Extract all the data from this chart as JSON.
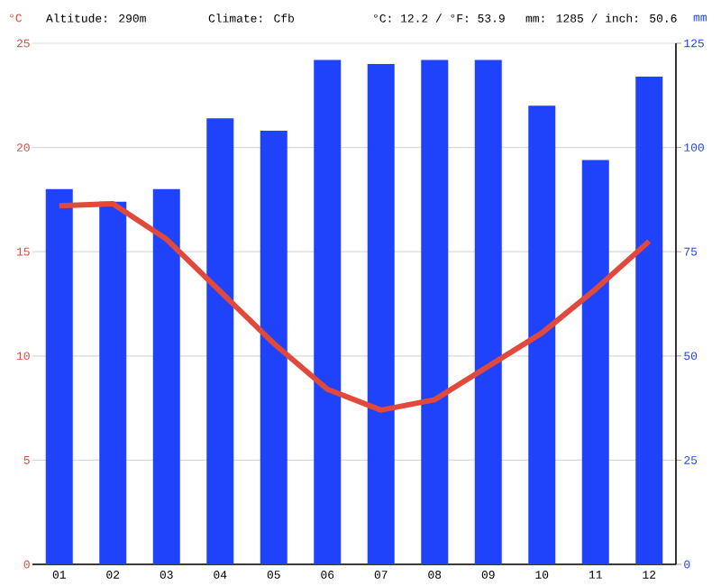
{
  "chart_data": {
    "type": "bar",
    "ylabel": "°C",
    "y2label": "mm",
    "annotations": [
      "Altitude: 290m",
      "Climate: Cfb",
      "°C: 12.2 / °F: 53.9",
      "mm: 1285 / inch: 50.6"
    ],
    "categories": [
      "01",
      "02",
      "03",
      "04",
      "05",
      "06",
      "07",
      "08",
      "09",
      "10",
      "11",
      "12"
    ],
    "series": [
      {
        "axis": "y2",
        "color": "#1f42fb",
        "values": [
          90,
          87,
          90,
          107,
          104,
          121,
          120,
          121,
          121,
          110,
          97,
          117
        ]
      },
      {
        "type": "line",
        "color": "#e0493b",
        "values": [
          17.2,
          17.3,
          15.6,
          13.1,
          10.6,
          8.4,
          7.4,
          7.9,
          9.5,
          11.1,
          13.2,
          15.5
        ]
      }
    ],
    "ylim": [
      0,
      25
    ],
    "yticks": [
      0,
      5,
      10,
      15,
      20,
      25
    ],
    "y2lim": [
      0,
      125
    ],
    "y2ticks": [
      0,
      25,
      50,
      75,
      100,
      125
    ],
    "grid": "y"
  }
}
